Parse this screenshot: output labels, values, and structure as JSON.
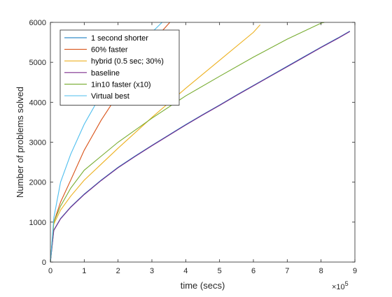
{
  "chart_data": {
    "type": "line",
    "title": "",
    "xlabel": "time (secs)",
    "ylabel": "Number of problems solved",
    "x_exponent_label": "×10",
    "x_exponent_power": "5",
    "xlim": [
      0,
      900000
    ],
    "ylim": [
      0,
      6000
    ],
    "x_scale_factor": 100000,
    "x_ticks": [
      0,
      1,
      2,
      3,
      4,
      5,
      6,
      7,
      8,
      9
    ],
    "y_ticks": [
      0,
      1000,
      2000,
      3000,
      4000,
      5000,
      6000
    ],
    "grid": false,
    "legend_position": "top-left",
    "series": [
      {
        "name": "1 second shorter",
        "color": "#0072BD",
        "x": [
          0,
          10000,
          30000,
          60000,
          100000,
          150000,
          200000,
          250000,
          300000,
          350000,
          400000,
          450000,
          500000,
          550000,
          600000,
          650000,
          700000,
          750000,
          800000,
          850000,
          885000
        ],
        "y": [
          0,
          800,
          1090,
          1380,
          1700,
          2050,
          2370,
          2650,
          2920,
          3180,
          3440,
          3690,
          3930,
          4180,
          4420,
          4660,
          4900,
          5140,
          5380,
          5610,
          5780
        ]
      },
      {
        "name": "60% faster",
        "color": "#D95319",
        "x": [
          0,
          10000,
          30000,
          60000,
          100000,
          150000,
          200000,
          250000,
          300000,
          353000
        ],
        "y": [
          0,
          1000,
          1500,
          2050,
          2800,
          3550,
          4200,
          4870,
          5500,
          6000
        ]
      },
      {
        "name": "hybrid (0.5 sec; 30%)",
        "color": "#EDB120",
        "x": [
          0,
          10000,
          30000,
          60000,
          100000,
          150000,
          200000,
          300000,
          400000,
          500000,
          600000,
          620000
        ],
        "y": [
          0,
          950,
          1300,
          1650,
          2050,
          2450,
          2850,
          3620,
          4350,
          5050,
          5750,
          5940
        ]
      },
      {
        "name": "baseline",
        "color": "#7E2F8E",
        "x": [
          0,
          10000,
          30000,
          60000,
          100000,
          150000,
          200000,
          250000,
          300000,
          350000,
          400000,
          450000,
          500000,
          550000,
          600000,
          650000,
          700000,
          750000,
          800000,
          850000,
          885000
        ],
        "y": [
          0,
          790,
          1080,
          1370,
          1690,
          2040,
          2360,
          2640,
          2910,
          3170,
          3430,
          3680,
          3920,
          4170,
          4410,
          4650,
          4890,
          5130,
          5370,
          5600,
          5770
        ]
      },
      {
        "name": "1in10 faster (x10)",
        "color": "#77AC30",
        "x": [
          0,
          10000,
          30000,
          60000,
          100000,
          150000,
          200000,
          300000,
          400000,
          500000,
          600000,
          700000,
          800000,
          810000
        ],
        "y": [
          0,
          1000,
          1400,
          1850,
          2300,
          2650,
          3000,
          3600,
          4160,
          4650,
          5130,
          5580,
          5980,
          6000
        ]
      },
      {
        "name": "Virtual best",
        "color": "#4DBEEE",
        "x": [
          0,
          10000,
          30000,
          60000,
          100000,
          150000,
          200000,
          250000,
          300000,
          330000
        ],
        "y": [
          0,
          1100,
          2000,
          2700,
          3450,
          4200,
          4820,
          5320,
          5750,
          6000
        ]
      }
    ]
  }
}
